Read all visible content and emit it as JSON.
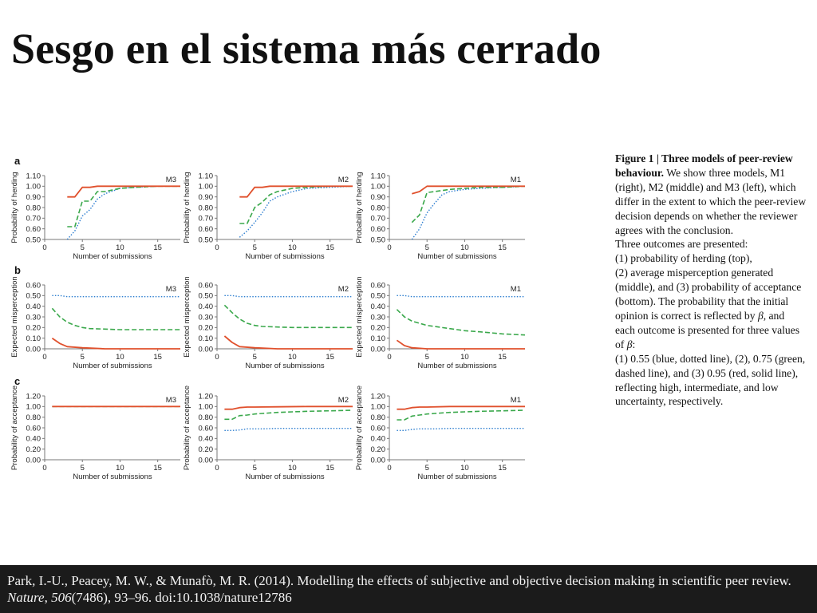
{
  "title": "Sesgo en el sistema más cerrado",
  "caption": {
    "figure_label": "Figure 1",
    "separator": " | ",
    "heading": "Three models of peer-review behaviour.",
    "body": " We show three models, M1 (right), M2 (middle) and M3 (left), which differ in the extent to which the peer-review decision depends on whether the reviewer agrees with the conclusion.",
    "outcomes_intro": "Three outcomes are presented:",
    "outcome_1": "(1) probability of herding (top),",
    "outcome_2": "(2) average misperception generated (middle), and (3) probability of acceptance (bottom). The probability that the initial opinion is correct is reflected by ",
    "beta_1": "β",
    "outcome_3": ", and each outcome is presented for three values of ",
    "beta_2": "β",
    "outcome_4": ":",
    "values_text": "(1) 0.55 (blue, dotted line), (2), 0.75 (green, dashed line), and (3) 0.95 (red, solid line), reflecting high, intermediate, and low uncertainty, respectively."
  },
  "footer": {
    "authors": "Park, I.-U., Peacey, M. W., & Munafò, M. R. (2014). Modelling the effects of subjective and objective decision making in scientific peer review. ",
    "journal": "Nature",
    "sep1": ", ",
    "volume": "506",
    "rest": "(7486), 93–96. doi:10.1038/nature12786"
  },
  "colors": {
    "blue": "#2f7fd0",
    "green": "#3aa84b",
    "red": "#e0502c",
    "axis": "#777777"
  },
  "chart_data": {
    "rows": [
      {
        "letter": "a",
        "ylabel": "Probability of herding",
        "xlabel": "Number of submissions",
        "ylim": [
          0.5,
          1.1
        ],
        "yticks": [
          0.5,
          0.6,
          0.7,
          0.8,
          0.9,
          1.0,
          1.1
        ],
        "ytick_labels": [
          "0.50",
          "0.60",
          "0.70",
          "0.80",
          "0.90",
          "1.00",
          "1.10"
        ],
        "panels": [
          {
            "model": "M3",
            "series": [
              {
                "color": "blue",
                "style": "dotted",
                "x": [
                  3,
                  4,
                  5,
                  6,
                  7,
                  8,
                  10,
                  12,
                  15,
                  18
                ],
                "y": [
                  0.5,
                  0.58,
                  0.72,
                  0.78,
                  0.88,
                  0.93,
                  0.98,
                  0.99,
                  1.0,
                  1.0
                ]
              },
              {
                "color": "green",
                "style": "dashed",
                "x": [
                  3,
                  4,
                  5,
                  6,
                  7,
                  8,
                  10,
                  12,
                  15,
                  18
                ],
                "y": [
                  0.62,
                  0.62,
                  0.86,
                  0.86,
                  0.95,
                  0.95,
                  0.98,
                  0.99,
                  1.0,
                  1.0
                ]
              },
              {
                "color": "red",
                "style": "solid",
                "x": [
                  3,
                  4,
                  5,
                  6,
                  7,
                  8,
                  10,
                  12,
                  15,
                  18
                ],
                "y": [
                  0.9,
                  0.9,
                  0.99,
                  0.99,
                  1.0,
                  1.0,
                  1.0,
                  1.0,
                  1.0,
                  1.0
                ]
              }
            ]
          },
          {
            "model": "M2",
            "series": [
              {
                "color": "blue",
                "style": "dotted",
                "x": [
                  3,
                  4,
                  5,
                  6,
                  7,
                  8,
                  10,
                  12,
                  15,
                  18
                ],
                "y": [
                  0.52,
                  0.58,
                  0.66,
                  0.75,
                  0.86,
                  0.9,
                  0.95,
                  0.98,
                  0.99,
                  1.0
                ]
              },
              {
                "color": "green",
                "style": "dashed",
                "x": [
                  3,
                  4,
                  5,
                  6,
                  7,
                  8,
                  10,
                  12,
                  15,
                  18
                ],
                "y": [
                  0.65,
                  0.65,
                  0.8,
                  0.85,
                  0.92,
                  0.95,
                  0.98,
                  0.99,
                  1.0,
                  1.0
                ]
              },
              {
                "color": "red",
                "style": "solid",
                "x": [
                  3,
                  4,
                  5,
                  6,
                  7,
                  8,
                  10,
                  12,
                  15,
                  18
                ],
                "y": [
                  0.9,
                  0.9,
                  0.99,
                  0.99,
                  1.0,
                  1.0,
                  1.0,
                  1.0,
                  1.0,
                  1.0
                ]
              }
            ]
          },
          {
            "model": "M1",
            "series": [
              {
                "color": "blue",
                "style": "dotted",
                "x": [
                  3,
                  4,
                  5,
                  6,
                  7,
                  8,
                  10,
                  12,
                  15,
                  18
                ],
                "y": [
                  0.5,
                  0.6,
                  0.75,
                  0.84,
                  0.92,
                  0.95,
                  0.97,
                  0.98,
                  0.99,
                  1.0
                ]
              },
              {
                "color": "green",
                "style": "dashed",
                "x": [
                  3,
                  4,
                  5,
                  6,
                  7,
                  8,
                  10,
                  12,
                  15,
                  18
                ],
                "y": [
                  0.66,
                  0.73,
                  0.94,
                  0.95,
                  0.96,
                  0.97,
                  0.98,
                  0.99,
                  0.99,
                  1.0
                ]
              },
              {
                "color": "red",
                "style": "solid",
                "x": [
                  3,
                  4,
                  5,
                  6,
                  7,
                  8,
                  10,
                  12,
                  15,
                  18
                ],
                "y": [
                  0.93,
                  0.95,
                  1.0,
                  1.0,
                  1.0,
                  1.0,
                  1.0,
                  1.0,
                  1.0,
                  1.0
                ]
              }
            ]
          }
        ]
      },
      {
        "letter": "b",
        "ylabel": "Expected misperception",
        "xlabel": "Number of submissions",
        "ylim": [
          0.0,
          0.6
        ],
        "yticks": [
          0.0,
          0.1,
          0.2,
          0.3,
          0.4,
          0.5,
          0.6
        ],
        "ytick_labels": [
          "0.00",
          "0.10",
          "0.20",
          "0.30",
          "0.40",
          "0.50",
          "0.60"
        ],
        "panels": [
          {
            "model": "M3",
            "series": [
              {
                "color": "blue",
                "style": "dotted",
                "x": [
                  1,
                  2,
                  3,
                  5,
                  8,
                  12,
                  18
                ],
                "y": [
                  0.5,
                  0.5,
                  0.49,
                  0.49,
                  0.49,
                  0.49,
                  0.49
                ]
              },
              {
                "color": "green",
                "style": "dashed",
                "x": [
                  1,
                  2,
                  3,
                  4,
                  5,
                  6,
                  8,
                  10,
                  12,
                  15,
                  18
                ],
                "y": [
                  0.38,
                  0.3,
                  0.25,
                  0.22,
                  0.2,
                  0.19,
                  0.185,
                  0.18,
                  0.18,
                  0.18,
                  0.18
                ]
              },
              {
                "color": "red",
                "style": "solid",
                "x": [
                  1,
                  2,
                  3,
                  5,
                  8,
                  12,
                  18
                ],
                "y": [
                  0.1,
                  0.05,
                  0.02,
                  0.01,
                  0.0,
                  0.0,
                  0.0
                ]
              }
            ]
          },
          {
            "model": "M2",
            "series": [
              {
                "color": "blue",
                "style": "dotted",
                "x": [
                  1,
                  2,
                  3,
                  5,
                  8,
                  12,
                  18
                ],
                "y": [
                  0.5,
                  0.5,
                  0.49,
                  0.49,
                  0.49,
                  0.49,
                  0.49
                ]
              },
              {
                "color": "green",
                "style": "dashed",
                "x": [
                  1,
                  2,
                  3,
                  4,
                  5,
                  6,
                  8,
                  10,
                  12,
                  15,
                  18
                ],
                "y": [
                  0.41,
                  0.34,
                  0.28,
                  0.24,
                  0.22,
                  0.21,
                  0.205,
                  0.2,
                  0.2,
                  0.2,
                  0.2
                ]
              },
              {
                "color": "red",
                "style": "solid",
                "x": [
                  1,
                  2,
                  3,
                  5,
                  8,
                  12,
                  18
                ],
                "y": [
                  0.12,
                  0.06,
                  0.02,
                  0.01,
                  0.0,
                  0.0,
                  0.0
                ]
              }
            ]
          },
          {
            "model": "M1",
            "series": [
              {
                "color": "blue",
                "style": "dotted",
                "x": [
                  1,
                  2,
                  3,
                  5,
                  8,
                  12,
                  18
                ],
                "y": [
                  0.5,
                  0.5,
                  0.49,
                  0.49,
                  0.49,
                  0.49,
                  0.49
                ]
              },
              {
                "color": "green",
                "style": "dashed",
                "x": [
                  1,
                  2,
                  3,
                  4,
                  5,
                  6,
                  8,
                  10,
                  12,
                  15,
                  18
                ],
                "y": [
                  0.37,
                  0.3,
                  0.26,
                  0.24,
                  0.22,
                  0.21,
                  0.19,
                  0.17,
                  0.16,
                  0.14,
                  0.13
                ]
              },
              {
                "color": "red",
                "style": "solid",
                "x": [
                  1,
                  2,
                  3,
                  5,
                  8,
                  12,
                  18
                ],
                "y": [
                  0.08,
                  0.03,
                  0.01,
                  0.0,
                  0.0,
                  0.0,
                  0.0
                ]
              }
            ]
          }
        ]
      },
      {
        "letter": "c",
        "ylabel": "Probability of acceptance",
        "xlabel": "Number of submissions",
        "ylim": [
          0.0,
          1.2
        ],
        "yticks": [
          0.0,
          0.2,
          0.4,
          0.6,
          0.8,
          1.0,
          1.2
        ],
        "ytick_labels": [
          "0.00",
          "0.20",
          "0.40",
          "0.60",
          "0.80",
          "1.00",
          "1.20"
        ],
        "panels": [
          {
            "model": "M3",
            "series": [
              {
                "color": "blue",
                "style": "dotted",
                "x": [
                  1,
                  18
                ],
                "y": [
                  1.0,
                  1.0
                ]
              },
              {
                "color": "green",
                "style": "dashed",
                "x": [
                  1,
                  18
                ],
                "y": [
                  1.0,
                  1.0
                ]
              },
              {
                "color": "red",
                "style": "solid",
                "x": [
                  1,
                  18
                ],
                "y": [
                  1.0,
                  1.0
                ]
              }
            ]
          },
          {
            "model": "M2",
            "series": [
              {
                "color": "blue",
                "style": "dotted",
                "x": [
                  1,
                  2,
                  3,
                  4,
                  6,
                  8,
                  12,
                  18
                ],
                "y": [
                  0.55,
                  0.55,
                  0.56,
                  0.58,
                  0.58,
                  0.59,
                  0.59,
                  0.59
                ]
              },
              {
                "color": "green",
                "style": "dashed",
                "x": [
                  1,
                  2,
                  3,
                  4,
                  5,
                  6,
                  8,
                  10,
                  12,
                  15,
                  18
                ],
                "y": [
                  0.76,
                  0.76,
                  0.83,
                  0.84,
                  0.86,
                  0.87,
                  0.89,
                  0.9,
                  0.91,
                  0.92,
                  0.93
                ]
              },
              {
                "color": "red",
                "style": "solid",
                "x": [
                  1,
                  2,
                  3,
                  4,
                  5,
                  8,
                  12,
                  18
                ],
                "y": [
                  0.95,
                  0.95,
                  0.98,
                  0.99,
                  0.99,
                  0.995,
                  1.0,
                  1.0
                ]
              }
            ]
          },
          {
            "model": "M1",
            "series": [
              {
                "color": "blue",
                "style": "dotted",
                "x": [
                  1,
                  2,
                  3,
                  4,
                  6,
                  8,
                  12,
                  18
                ],
                "y": [
                  0.55,
                  0.55,
                  0.57,
                  0.58,
                  0.58,
                  0.59,
                  0.59,
                  0.59
                ]
              },
              {
                "color": "green",
                "style": "dashed",
                "x": [
                  1,
                  2,
                  3,
                  4,
                  5,
                  6,
                  8,
                  10,
                  12,
                  15,
                  18
                ],
                "y": [
                  0.75,
                  0.75,
                  0.82,
                  0.84,
                  0.86,
                  0.87,
                  0.89,
                  0.9,
                  0.91,
                  0.92,
                  0.93
                ]
              },
              {
                "color": "red",
                "style": "solid",
                "x": [
                  1,
                  2,
                  3,
                  4,
                  5,
                  8,
                  12,
                  18
                ],
                "y": [
                  0.95,
                  0.95,
                  0.98,
                  0.99,
                  0.99,
                  1.0,
                  1.0,
                  1.0
                ]
              }
            ]
          }
        ]
      }
    ],
    "xlim": [
      0,
      18
    ],
    "xticks": [
      0,
      5,
      10,
      15
    ],
    "xtick_labels": [
      "0",
      "5",
      "10",
      "15"
    ]
  }
}
